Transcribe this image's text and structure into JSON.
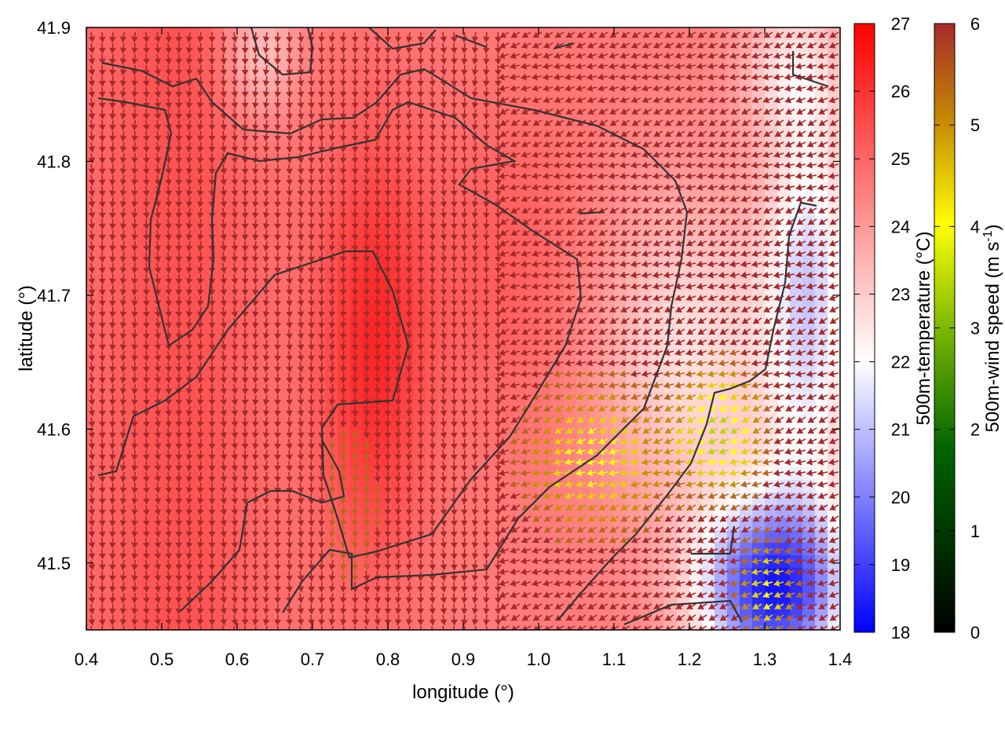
{
  "chart_data": {
    "type": "heatmap",
    "title": "",
    "xlabel": "longitude (°)",
    "ylabel": "latitude (°)",
    "xlim": [
      0.4,
      1.4
    ],
    "ylim": [
      41.45,
      41.9
    ],
    "x_ticks": [
      "0.4",
      "0.5",
      "0.6",
      "0.7",
      "0.8",
      "0.9",
      "1.0",
      "1.1",
      "1.2",
      "1.3",
      "1.4"
    ],
    "y_ticks": [
      "41.5",
      "41.6",
      "41.7",
      "41.8",
      "41.9"
    ],
    "grid": false,
    "overlay": "wind vectors and temperature contours",
    "colorbars": [
      {
        "name": "temperature",
        "label": "500m-temperature (°C)",
        "range": [
          18,
          27
        ],
        "ticks": [
          "18",
          "19",
          "20",
          "21",
          "22",
          "23",
          "24",
          "25",
          "26",
          "27"
        ],
        "colors": [
          "#0000ff",
          "#ffffff",
          "#ff0000"
        ]
      },
      {
        "name": "wind",
        "label_main": "500m-wind speed (m s",
        "label_sup": "-1",
        "label_end": ")",
        "range": [
          0,
          6
        ],
        "ticks": [
          "0",
          "1",
          "2",
          "3",
          "4",
          "5",
          "6"
        ],
        "colors": [
          "#000000",
          "#006400",
          "#7cb800",
          "#ffff00",
          "#c89000",
          "#a52a2a"
        ]
      }
    ]
  }
}
